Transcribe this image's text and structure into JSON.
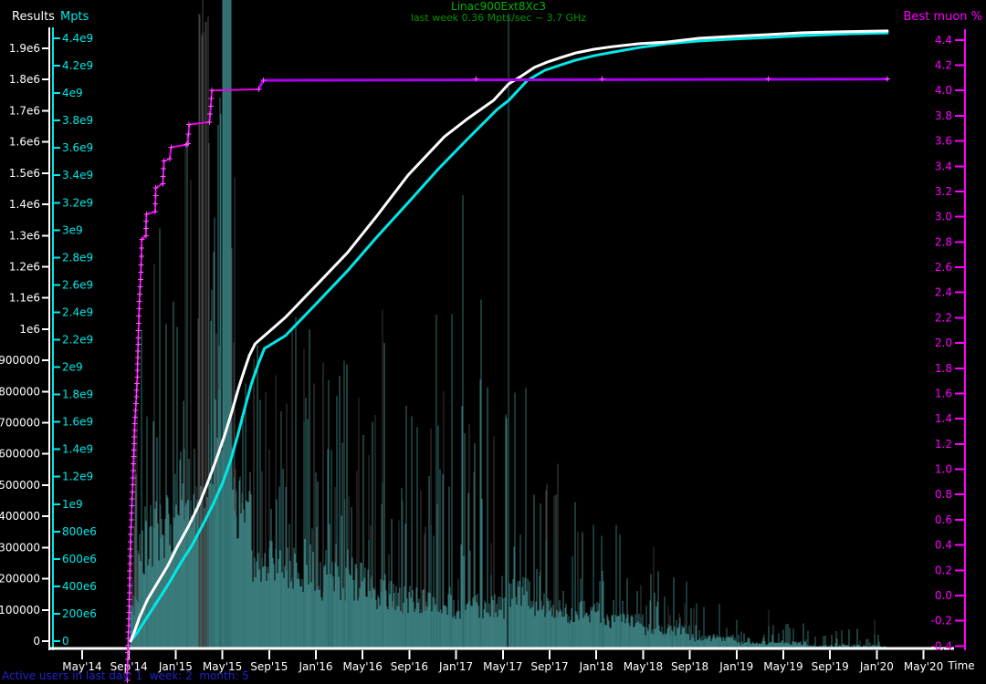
{
  "chart_title": "Linac900Ext8Xc3",
  "chart_subtitle": "last week 0.36 Mpts/sec ~ 3.7 GHz",
  "status_line": "Active users in last day: 1  week: 2  month: 5",
  "colors": {
    "background": "#000000",
    "results_axis": "#ffffff",
    "mpts_axis": "#00e8e8",
    "best_muon_axis": "#ff00ff",
    "title_green": "#00b400",
    "subtitle_green": "#009600",
    "status_blue": "#2222cc",
    "results_series": "#ffffff",
    "mpts_series": "#00e8e8",
    "muon_series_early": "#e600e6",
    "muon_series_late": "#a800f0",
    "muon_marker": "#ff50ff",
    "activity_teal": "#3a7a7a",
    "activity_gray": "#3e3e3e"
  },
  "axes": {
    "results": {
      "title": "Results",
      "color": "#ffffff",
      "tick_labels": [
        "1.9e6",
        "1.8e6",
        "1.7e6",
        "1.6e6",
        "1.5e6",
        "1.4e6",
        "1.3e6",
        "1.2e6",
        "1.1e6",
        "1e6",
        "900000",
        "800000",
        "700000",
        "600000",
        "500000",
        "400000",
        "300000",
        "200000",
        "100000",
        "0"
      ],
      "tick_values": [
        1900000,
        1800000,
        1700000,
        1600000,
        1500000,
        1400000,
        1300000,
        1200000,
        1100000,
        1000000,
        900000,
        800000,
        700000,
        600000,
        500000,
        400000,
        300000,
        200000,
        100000,
        0
      ],
      "range": [
        0,
        1900000
      ]
    },
    "mpts": {
      "title": "Mpts",
      "color": "#00e8e8",
      "tick_labels": [
        "4.4e9",
        "4.2e9",
        "4e9",
        "3.8e9",
        "3.6e9",
        "3.4e9",
        "3.2e9",
        "3e9",
        "2.8e9",
        "2.6e9",
        "2.4e9",
        "2.2e9",
        "2e9",
        "1.8e9",
        "1.6e9",
        "1.4e9",
        "1.2e9",
        "1e9",
        "800e6",
        "600e6",
        "400e6",
        "200e6",
        "0"
      ],
      "tick_values": [
        4400000000,
        4200000000,
        4000000000,
        3800000000,
        3600000000,
        3400000000,
        3200000000,
        3000000000,
        2800000000,
        2600000000,
        2400000000,
        2200000000,
        2000000000,
        1800000000,
        1600000000,
        1400000000,
        1200000000,
        1000000000,
        800000000,
        600000000,
        400000000,
        200000000,
        0
      ],
      "range": [
        0,
        4400000000
      ]
    },
    "best_muon": {
      "title": "Best muon %",
      "color": "#ff00ff",
      "tick_labels": [
        "4.4",
        "4.2",
        "4.0",
        "3.8",
        "3.6",
        "3.4",
        "3.2",
        "3.0",
        "2.8",
        "2.6",
        "2.4",
        "2.2",
        "2.0",
        "1.8",
        "1.6",
        "1.4",
        "1.2",
        "1.0",
        "0.8",
        "0.6",
        "0.4",
        "0.2",
        "0.0",
        "-0.2",
        "-0.4"
      ],
      "tick_values": [
        4.4,
        4.2,
        4.0,
        3.8,
        3.6,
        3.4,
        3.2,
        3.0,
        2.8,
        2.6,
        2.4,
        2.2,
        2.0,
        1.8,
        1.6,
        1.4,
        1.2,
        1.0,
        0.8,
        0.6,
        0.4,
        0.2,
        0.0,
        -0.2,
        -0.4
      ],
      "range": [
        -0.4,
        4.4
      ]
    },
    "time": {
      "title": "Time",
      "color": "#ffffff",
      "tick_labels": [
        "May'14",
        "Sep'14",
        "Jan'15",
        "May'15",
        "Sep'15",
        "Jan'16",
        "May'16",
        "Sep'16",
        "Jan'17",
        "May'17",
        "Sep'17",
        "Jan'18",
        "May'18",
        "Sep'18",
        "Jan'19",
        "May'19",
        "Sep'19",
        "Jan'20",
        "May'20"
      ],
      "tick_month_offsets": [
        0,
        4,
        8,
        12,
        16,
        20,
        24,
        28,
        32,
        36,
        40,
        44,
        48,
        52,
        56,
        60,
        64,
        68,
        72
      ]
    }
  },
  "chart_data": {
    "type": "line",
    "description": "Muon1 distributed computing project statistics: cumulative Results (white, left axis), cumulative Mpts (cyan, second left axis), Best muon % record (magenta, right axis), and daily activity rate spikes (teal/gray vertical bars, relative height). X axis is time from May 2014 to May 2020; x values below are months since May 2014.",
    "x_unit": "months since May 2014 (tick spacing = 4 months)",
    "series": [
      {
        "name": "Results (cumulative)",
        "axis": "results",
        "color": "#ffffff",
        "points": [
          [
            4.14,
            0
          ],
          [
            4.4,
            23000
          ],
          [
            4.9,
            76000
          ],
          [
            5.6,
            134000
          ],
          [
            6.4,
            184000
          ],
          [
            7.3,
            240000
          ],
          [
            8.2,
            307000
          ],
          [
            9.1,
            368000
          ],
          [
            10.0,
            438000
          ],
          [
            10.8,
            514000
          ],
          [
            11.5,
            585000
          ],
          [
            12.2,
            661000
          ],
          [
            12.8,
            734000
          ],
          [
            13.4,
            813000
          ],
          [
            13.9,
            871000
          ],
          [
            14.3,
            915000
          ],
          [
            14.8,
            953000
          ],
          [
            17.4,
            1038000
          ],
          [
            20.1,
            1143000
          ],
          [
            22.7,
            1245000
          ],
          [
            25.2,
            1362000
          ],
          [
            27.9,
            1494000
          ],
          [
            31.0,
            1617000
          ],
          [
            33.0,
            1675000
          ],
          [
            35.2,
            1733000
          ],
          [
            36.5,
            1786000
          ],
          [
            37.5,
            1809000
          ],
          [
            38.7,
            1839000
          ],
          [
            39.8,
            1856000
          ],
          [
            41.0,
            1871000
          ],
          [
            42.2,
            1885000
          ],
          [
            43.8,
            1897000
          ],
          [
            45.5,
            1906000
          ],
          [
            47.7,
            1915000
          ],
          [
            50.0,
            1920000
          ],
          [
            52.7,
            1932000
          ],
          [
            55.5,
            1938000
          ],
          [
            58.6,
            1944000
          ],
          [
            61.7,
            1950000
          ],
          [
            64.8,
            1953000
          ],
          [
            68.9,
            1956000
          ]
        ]
      },
      {
        "name": "Mpts (cumulative)",
        "axis": "mpts",
        "color": "#00e8e8",
        "points": [
          [
            4.14,
            0
          ],
          [
            4.7,
            60000000
          ],
          [
            5.5,
            166000000
          ],
          [
            6.4,
            286000000
          ],
          [
            7.4,
            419000000
          ],
          [
            8.4,
            566000000
          ],
          [
            9.4,
            699000000
          ],
          [
            10.3,
            845000000
          ],
          [
            11.2,
            998000000
          ],
          [
            12.0,
            1151000000
          ],
          [
            12.7,
            1318000000
          ],
          [
            13.3,
            1497000000
          ],
          [
            13.9,
            1697000000
          ],
          [
            14.5,
            1883000000
          ],
          [
            15.1,
            2030000000
          ],
          [
            15.6,
            2136000000
          ],
          [
            17.4,
            2230000000
          ],
          [
            20.1,
            2469000000
          ],
          [
            22.7,
            2702000000
          ],
          [
            25.2,
            2948000000
          ],
          [
            27.9,
            3201000000
          ],
          [
            30.5,
            3448000000
          ],
          [
            33.0,
            3667000000
          ],
          [
            35.5,
            3880000000
          ],
          [
            36.5,
            3947000000
          ],
          [
            38.1,
            4093000000
          ],
          [
            39.6,
            4167000000
          ],
          [
            41.0,
            4207000000
          ],
          [
            42.2,
            4240000000
          ],
          [
            43.8,
            4273000000
          ],
          [
            45.5,
            4300000000
          ],
          [
            47.7,
            4333000000
          ],
          [
            50.0,
            4360000000
          ],
          [
            52.7,
            4380000000
          ],
          [
            55.5,
            4393000000
          ],
          [
            58.6,
            4406000000
          ],
          [
            61.7,
            4420000000
          ],
          [
            65.6,
            4433000000
          ],
          [
            68.9,
            4439000000
          ]
        ]
      },
      {
        "name": "Best muon %",
        "axis": "best_muon",
        "color": "#c800f0",
        "color_change_at_x": 15.5,
        "marker": "plus",
        "points": [
          [
            3.85,
            -0.67
          ],
          [
            3.95,
            -0.34
          ],
          [
            4.05,
            0.02
          ],
          [
            4.1,
            0.31
          ],
          [
            4.2,
            0.6
          ],
          [
            4.3,
            0.82
          ],
          [
            4.4,
            1.1
          ],
          [
            4.5,
            1.36
          ],
          [
            4.7,
            1.68
          ],
          [
            4.8,
            2.04
          ],
          [
            4.9,
            2.33
          ],
          [
            5.05,
            2.62
          ],
          [
            5.1,
            2.82
          ],
          [
            5.45,
            2.85
          ],
          [
            5.5,
            3.02
          ],
          [
            6.25,
            3.04
          ],
          [
            6.3,
            3.23
          ],
          [
            6.9,
            3.26
          ],
          [
            7.0,
            3.44
          ],
          [
            7.5,
            3.46
          ],
          [
            7.6,
            3.55
          ],
          [
            8.9,
            3.57
          ],
          [
            9.05,
            3.58
          ],
          [
            9.15,
            3.73
          ],
          [
            10.9,
            3.75
          ],
          [
            11.1,
            4.0
          ],
          [
            15.1,
            4.01
          ],
          [
            15.5,
            4.08
          ],
          [
            68.9,
            4.09
          ]
        ],
        "plateau_marker_x": [
          33.7,
          44.5,
          58.7
        ]
      }
    ],
    "activity_spikes": {
      "note": "vertical 1px bars, heights estimated as fraction of plot height (no labeled axis)",
      "teal_envelope": [
        [
          4.1,
          4.8,
          0.07,
          0.35
        ],
        [
          4.8,
          6.3,
          0.16,
          0.55
        ],
        [
          6.3,
          8.3,
          0.2,
          0.75
        ],
        [
          8.3,
          9.9,
          0.25,
          0.95
        ],
        [
          9.9,
          13.0,
          0.3,
          1.04
        ],
        [
          13.0,
          14.5,
          0.22,
          0.75
        ],
        [
          14.5,
          17.0,
          0.14,
          0.62
        ],
        [
          17.0,
          20.0,
          0.13,
          0.55
        ],
        [
          20.0,
          24.0,
          0.11,
          0.5
        ],
        [
          24.0,
          27.0,
          0.09,
          0.65
        ],
        [
          27.0,
          30.0,
          0.08,
          0.5
        ],
        [
          30.0,
          33.0,
          0.07,
          0.55
        ],
        [
          33.0,
          36.4,
          0.07,
          0.6
        ],
        [
          36.5,
          38.5,
          0.09,
          0.42
        ],
        [
          38.5,
          41.5,
          0.07,
          0.3
        ],
        [
          41.5,
          44.5,
          0.06,
          0.25
        ],
        [
          44.5,
          48.0,
          0.045,
          0.2
        ],
        [
          48.0,
          52.0,
          0.03,
          0.14
        ],
        [
          52.0,
          56.0,
          0.018,
          0.08
        ],
        [
          56.0,
          62.0,
          0.01,
          0.05
        ],
        [
          62.0,
          68.5,
          0.006,
          0.035
        ],
        [
          68.5,
          69.0,
          0.004,
          0.01
        ]
      ],
      "gray_envelope": [
        [
          4.1,
          5.5,
          0.45,
          0.5
        ],
        [
          5.5,
          8.5,
          0.75,
          0.4
        ],
        [
          8.5,
          10.0,
          0.95,
          0.5
        ],
        [
          10.0,
          11.0,
          1.04,
          0.8
        ],
        [
          11.0,
          14.0,
          0.85,
          0.5
        ],
        [
          14.0,
          18.0,
          0.55,
          0.35
        ],
        [
          18.0,
          22.0,
          0.5,
          0.3
        ],
        [
          22.0,
          26.0,
          0.55,
          0.35
        ],
        [
          26.0,
          30.0,
          0.6,
          0.3
        ],
        [
          30.0,
          34.0,
          0.45,
          0.25
        ],
        [
          34.0,
          38.0,
          0.4,
          0.2
        ],
        [
          38.0,
          44.0,
          0.3,
          0.15
        ],
        [
          44.0,
          50.0,
          0.18,
          0.1
        ],
        [
          50.0,
          60.0,
          0.08,
          0.06
        ],
        [
          60.0,
          68.0,
          0.05,
          0.04
        ]
      ],
      "notable_spikes": [
        [
          32.6,
          0.73
        ],
        [
          36.5,
          1.023
        ],
        [
          38.0,
          0.42
        ],
        [
          43.75,
          0.2
        ],
        [
          45.7,
          0.2
        ],
        [
          62.1,
          0.03
        ]
      ],
      "full_height_teal_columns_x": [
        12.05,
        12.75
      ],
      "full_height_gray_columns_x": [
        10.0,
        10.8
      ]
    }
  }
}
